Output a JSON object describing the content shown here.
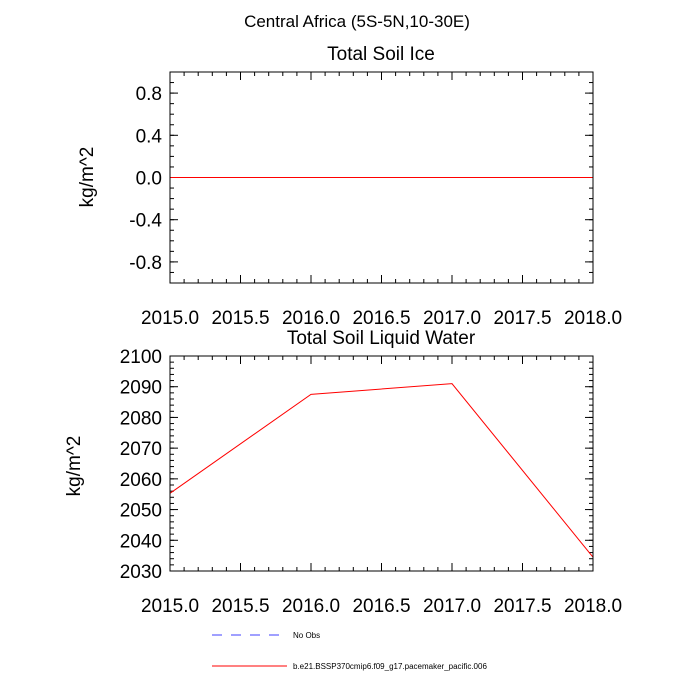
{
  "figure": {
    "suptitle": "Central Africa (5S-5N,10-30E)"
  },
  "chart_data": [
    {
      "type": "line",
      "title": "Total Soil Ice",
      "xlabel": "",
      "ylabel": "kg/m^2",
      "xlim": [
        2015.0,
        2018.0
      ],
      "ylim": [
        -1.0,
        1.0
      ],
      "x_ticks": [
        2015.0,
        2015.5,
        2016.0,
        2016.5,
        2017.0,
        2017.5,
        2018.0
      ],
      "x_tick_labels": [
        "2015.0",
        "2015.5",
        "2016.0",
        "2016.5",
        "2017.0",
        "2017.5",
        "2018.0"
      ],
      "y_ticks": [
        0.8,
        0.4,
        0.0,
        -0.4,
        -0.8
      ],
      "y_tick_labels": [
        "0.8",
        "0.4",
        "0.0",
        "-0.4",
        "-0.8"
      ],
      "grid": false,
      "series": [
        {
          "color": "#ff0000",
          "x": [
            2015.0,
            2016.0,
            2017.0,
            2018.0
          ],
          "y": [
            0.0,
            0.0,
            0.0,
            0.0
          ]
        }
      ]
    },
    {
      "type": "line",
      "title": "Total Soil Liquid Water",
      "xlabel": "",
      "ylabel": "kg/m^2",
      "xlim": [
        2015.0,
        2018.0
      ],
      "ylim": [
        2030,
        2100
      ],
      "x_ticks": [
        2015.0,
        2015.5,
        2016.0,
        2016.5,
        2017.0,
        2017.5,
        2018.0
      ],
      "x_tick_labels": [
        "2015.0",
        "2015.5",
        "2016.0",
        "2016.5",
        "2017.0",
        "2017.5",
        "2018.0"
      ],
      "y_ticks": [
        2100,
        2090,
        2080,
        2070,
        2060,
        2050,
        2040,
        2030
      ],
      "y_tick_labels": [
        "2100",
        "2090",
        "2080",
        "2070",
        "2060",
        "2050",
        "2040",
        "2030"
      ],
      "grid": false,
      "series": [
        {
          "color": "#ff0000",
          "x": [
            2015.0,
            2016.0,
            2017.0,
            2018.0
          ],
          "y": [
            2055.3,
            2087.5,
            2091.0,
            2034.5
          ]
        }
      ]
    }
  ],
  "legend": {
    "placement": "bottom",
    "entries": [
      {
        "label": "No Obs",
        "color": "#0000ff",
        "style": "dashed"
      },
      {
        "label": "b.e21.BSSP370cmip6.f09_g17.pacemaker_pacific.006",
        "color": "#ff0000",
        "style": "solid"
      }
    ]
  }
}
